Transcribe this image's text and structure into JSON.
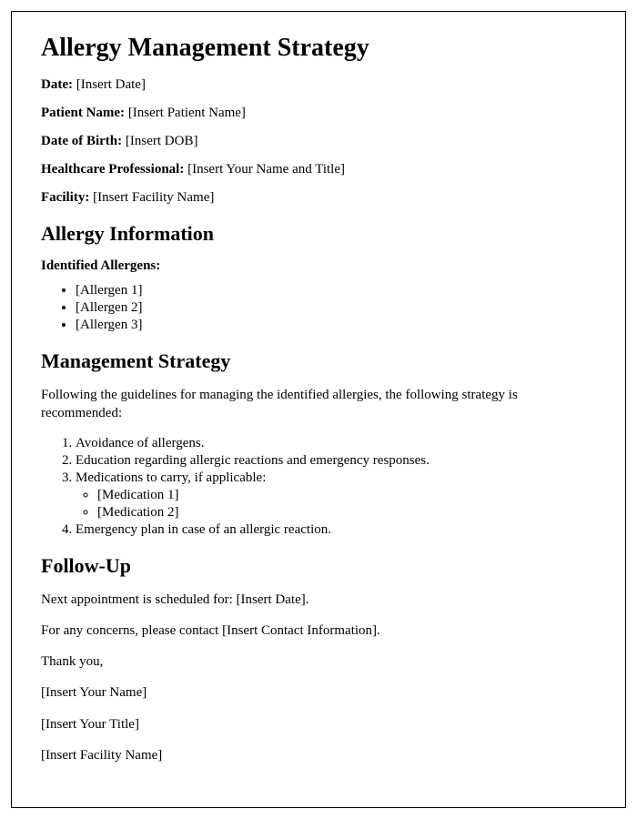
{
  "title": "Allergy Management Strategy",
  "fields": {
    "date_label": "Date:",
    "date_value": " [Insert Date]",
    "patient_label": "Patient Name:",
    "patient_value": " [Insert Patient Name]",
    "dob_label": "Date of Birth:",
    "dob_value": " [Insert DOB]",
    "hcp_label": "Healthcare Professional:",
    "hcp_value": " [Insert Your Name and Title]",
    "facility_label": "Facility:",
    "facility_value": " [Insert Facility Name]"
  },
  "section_allergy": {
    "heading": "Allergy Information",
    "sub": "Identified Allergens:",
    "items": {
      "a1": "[Allergen 1]",
      "a2": "[Allergen 2]",
      "a3": "[Allergen 3]"
    }
  },
  "section_strategy": {
    "heading": "Management Strategy",
    "intro": "Following the guidelines for managing the identified allergies, the following strategy is recommended:",
    "items": {
      "s1": "Avoidance of allergens.",
      "s2": "Education regarding allergic reactions and emergency responses.",
      "s3": "Medications to carry, if applicable:",
      "s3_m1": "[Medication 1]",
      "s3_m2": "[Medication 2]",
      "s4": "Emergency plan in case of an allergic reaction."
    }
  },
  "section_followup": {
    "heading": "Follow-Up",
    "next_appt": "Next appointment is scheduled for: [Insert Date].",
    "contact": "For any concerns, please contact [Insert Contact Information].",
    "thanks": "Thank you,",
    "sig_name": "[Insert Your Name]",
    "sig_title": "[Insert Your Title]",
    "sig_facility": "[Insert Facility Name]"
  }
}
